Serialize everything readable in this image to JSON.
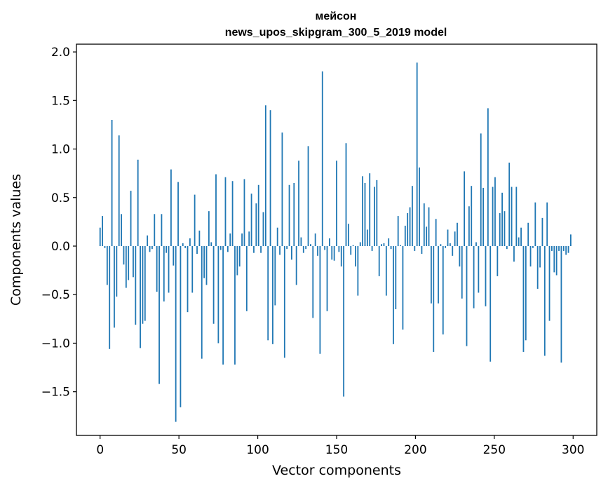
{
  "chart_data": {
    "type": "bar",
    "title": "мейсон",
    "subtitle": "news_upos_skipgram_300_5_2019 model",
    "xlabel": "Vector components",
    "ylabel": "Components values",
    "xlim": [
      -15,
      315
    ],
    "ylim": [
      -1.95,
      2.08
    ],
    "xticks": [
      0,
      50,
      100,
      150,
      200,
      250,
      300
    ],
    "yticks": [
      -1.5,
      -1.0,
      -0.5,
      0.0,
      0.5,
      1.0,
      1.5,
      2.0
    ],
    "ytick_labels": [
      "−1.5",
      "−1.0",
      "−0.5",
      "0.0",
      "0.5",
      "1.0",
      "1.5",
      "2.0"
    ],
    "color": "#1f77b4",
    "grid": false,
    "values": [
      0.19,
      0.31,
      -0.02,
      -0.4,
      -1.06,
      1.3,
      -0.84,
      -0.52,
      1.14,
      0.33,
      -0.19,
      -0.43,
      -0.35,
      0.57,
      -0.32,
      -0.81,
      0.89,
      -1.05,
      -0.8,
      -0.77,
      0.11,
      -0.06,
      -0.03,
      0.33,
      -0.47,
      -1.42,
      0.33,
      -0.57,
      -0.07,
      -0.48,
      0.79,
      -0.2,
      -1.81,
      0.66,
      -1.66,
      0.03,
      -0.02,
      -0.68,
      0.08,
      -0.48,
      0.53,
      -0.08,
      0.16,
      -1.16,
      -0.33,
      -0.4,
      0.36,
      0.04,
      -0.8,
      0.74,
      -1.0,
      -0.04,
      -1.22,
      0.71,
      -0.06,
      0.13,
      0.67,
      -1.22,
      -0.3,
      -0.21,
      0.13,
      0.69,
      -0.67,
      0.15,
      0.54,
      -0.07,
      0.44,
      0.63,
      -0.07,
      0.35,
      1.45,
      -0.97,
      1.4,
      -1.01,
      -0.61,
      0.19,
      -0.09,
      1.17,
      -1.15,
      -0.03,
      0.63,
      -0.14,
      0.65,
      -0.4,
      0.88,
      0.09,
      -0.07,
      -0.03,
      1.03,
      0.02,
      -0.74,
      0.13,
      -0.1,
      -1.11,
      1.8,
      -0.04,
      -0.67,
      0.08,
      -0.14,
      -0.15,
      0.88,
      -0.06,
      -0.21,
      -1.55,
      1.06,
      0.23,
      -0.09,
      0.01,
      -0.21,
      -0.51,
      0.04,
      0.72,
      0.65,
      0.17,
      0.75,
      -0.05,
      0.61,
      0.68,
      -0.31,
      0.02,
      0.03,
      -0.51,
      0.08,
      -0.03,
      -1.01,
      -0.65,
      0.31,
      0.01,
      -0.86,
      0.21,
      0.34,
      0.4,
      0.62,
      -0.05,
      1.89,
      0.81,
      -0.08,
      0.44,
      0.2,
      0.4,
      -0.59,
      -1.09,
      0.28,
      -0.59,
      0.02,
      -0.91,
      -0.02,
      0.17,
      0.03,
      -0.1,
      0.15,
      0.24,
      -0.21,
      -0.54,
      0.77,
      -1.03,
      0.41,
      0.62,
      -0.64,
      0.04,
      -0.48,
      1.16,
      0.6,
      -0.62,
      1.42,
      -1.19,
      0.61,
      0.71,
      -0.31,
      0.34,
      0.55,
      0.36,
      -0.03,
      0.86,
      0.61,
      -0.16,
      0.61,
      0.09,
      0.19,
      -1.09,
      -0.97,
      0.24,
      -0.21,
      -0.02,
      0.45,
      -0.44,
      -0.22,
      0.29,
      -1.13,
      0.45,
      -0.77,
      -0.05,
      -0.27,
      -0.3,
      -0.05,
      -1.2,
      -0.05,
      -0.09,
      -0.07,
      0.12
    ]
  }
}
